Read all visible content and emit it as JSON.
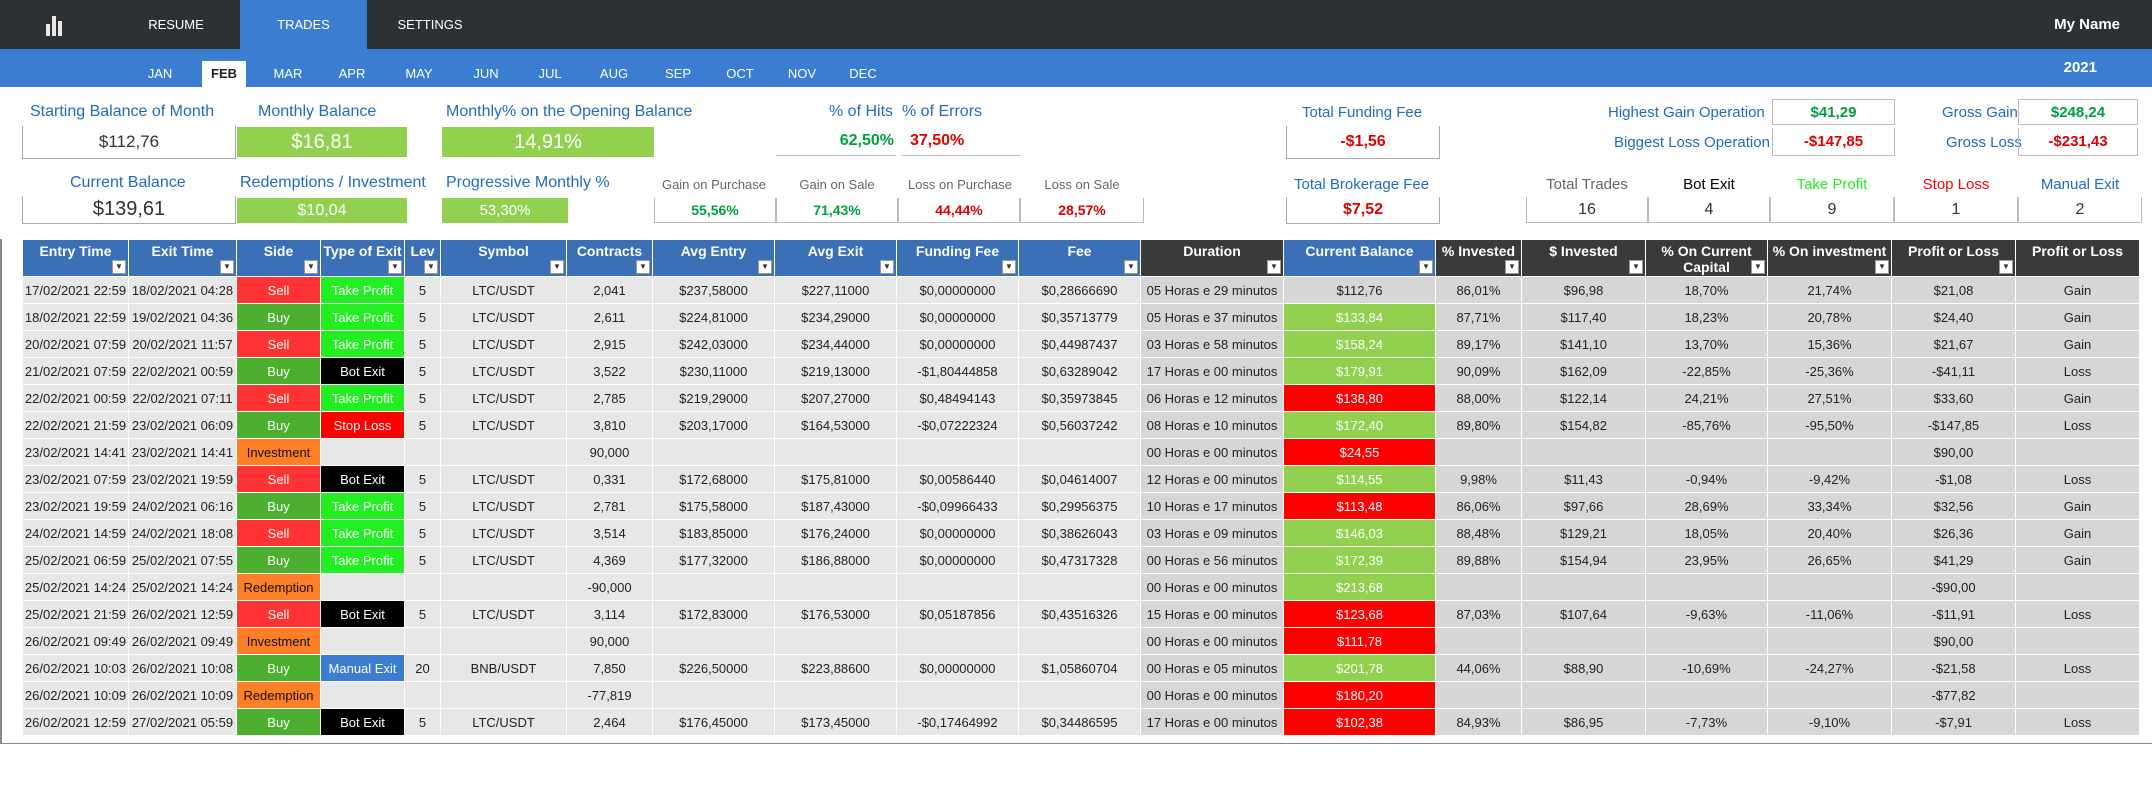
{
  "nav": {
    "tabs": [
      "RESUME",
      "TRADES",
      "SETTINGS"
    ],
    "user": "My Name"
  },
  "months": [
    "JAN",
    "FEB",
    "MAR",
    "APR",
    "MAY",
    "JUN",
    "JUL",
    "AUG",
    "SEP",
    "OCT",
    "NOV",
    "DEC"
  ],
  "year": "2021",
  "summary": {
    "starting_balance_label": "Starting Balance of Month",
    "starting_balance": "$112,76",
    "monthly_balance_label": "Monthly Balance",
    "monthly_balance": "$16,81",
    "monthly_pct_label": "Monthly% on the Opening Balance",
    "monthly_pct": "14,91%",
    "hits_label": "% of Hits",
    "hits": "62,50%",
    "errors_label": "% of Errors",
    "errors": "37,50%",
    "funding_fee_label": "Total Funding Fee",
    "funding_fee": "-$1,56",
    "highest_gain_label": "Highest Gain Operation",
    "highest_gain": "$41,29",
    "biggest_loss_label": "Biggest Loss Operation",
    "biggest_loss": "-$147,85",
    "gross_gain_label": "Gross Gain",
    "gross_gain": "$248,24",
    "gross_loss_label": "Gross Loss",
    "gross_loss": "-$231,43",
    "current_balance_label": "Current Balance",
    "current_balance": "$139,61",
    "redemptions_label": "Redemptions / Investment",
    "redemptions": "$10,04",
    "progressive_label": "Progressive Monthly %",
    "progressive": "53,30%",
    "gain_purchase_label": "Gain on Purchase",
    "gain_purchase": "55,56%",
    "gain_sale_label": "Gain on Sale",
    "gain_sale": "71,43%",
    "loss_purchase_label": "Loss on Purchase",
    "loss_purchase": "44,44%",
    "loss_sale_label": "Loss on Sale",
    "loss_sale": "28,57%",
    "brokerage_label": "Total Brokerage Fee",
    "brokerage": "$7,52",
    "total_trades_label": "Total Trades",
    "total_trades": "16",
    "bot_exit_label": "Bot Exit",
    "bot_exit": "4",
    "take_profit_label": "Take Profit",
    "take_profit": "9",
    "stop_loss_label": "Stop Loss",
    "stop_loss": "1",
    "manual_exit_label": "Manual Exit",
    "manual_exit": "2"
  },
  "table": {
    "headers": [
      "Entry Time",
      "Exit Time",
      "Side",
      "Type of Exit",
      "Lev",
      "Symbol",
      "Contracts",
      "Avg Entry",
      "Avg Exit",
      "Funding Fee",
      "Fee",
      "Duration",
      "Current Balance",
      "% Invested",
      "$ Invested",
      "% On Current Capital",
      "% On investment",
      "Profit or Loss",
      "Profit or Loss"
    ],
    "rows": [
      [
        "17/02/2021 22:59",
        "18/02/2021 04:28",
        "Sell",
        "Take Profit",
        "5",
        "LTC/USDT",
        "2,041",
        "$237,58000",
        "$227,11000",
        "$0,00000000",
        "$0,28666690",
        "05 Horas e 29 minutos",
        "$112,76",
        "86,01%",
        "$96,98",
        "18,70%",
        "21,74%",
        "$21,08",
        "Gain"
      ],
      [
        "18/02/2021 22:59",
        "19/02/2021 04:36",
        "Buy",
        "Take Profit",
        "5",
        "LTC/USDT",
        "2,611",
        "$224,81000",
        "$234,29000",
        "$0,00000000",
        "$0,35713779",
        "05 Horas e 37 minutos",
        "$133,84",
        "87,71%",
        "$117,40",
        "18,23%",
        "20,78%",
        "$24,40",
        "Gain"
      ],
      [
        "20/02/2021 07:59",
        "20/02/2021 11:57",
        "Sell",
        "Take Profit",
        "5",
        "LTC/USDT",
        "2,915",
        "$242,03000",
        "$234,44000",
        "$0,00000000",
        "$0,44987437",
        "03 Horas e 58 minutos",
        "$158,24",
        "89,17%",
        "$141,10",
        "13,70%",
        "15,36%",
        "$21,67",
        "Gain"
      ],
      [
        "21/02/2021 07:59",
        "22/02/2021 00:59",
        "Buy",
        "Bot Exit",
        "5",
        "LTC/USDT",
        "3,522",
        "$230,11000",
        "$219,13000",
        "-$1,80444858",
        "$0,63289042",
        "17 Horas e 00 minutos",
        "$179,91",
        "90,09%",
        "$162,09",
        "-22,85%",
        "-25,36%",
        "-$41,11",
        "Loss"
      ],
      [
        "22/02/2021 00:59",
        "22/02/2021 07:11",
        "Sell",
        "Take Profit",
        "5",
        "LTC/USDT",
        "2,785",
        "$219,29000",
        "$207,27000",
        "$0,48494143",
        "$0,35973845",
        "06 Horas e 12 minutos",
        "$138,80",
        "88,00%",
        "$122,14",
        "24,21%",
        "27,51%",
        "$33,60",
        "Gain"
      ],
      [
        "22/02/2021 21:59",
        "23/02/2021 06:09",
        "Buy",
        "Stop Loss",
        "5",
        "LTC/USDT",
        "3,810",
        "$203,17000",
        "$164,53000",
        "-$0,07222324",
        "$0,56037242",
        "08 Horas e 10 minutos",
        "$172,40",
        "89,80%",
        "$154,82",
        "-85,76%",
        "-95,50%",
        "-$147,85",
        "Loss"
      ],
      [
        "23/02/2021 14:41",
        "23/02/2021 14:41",
        "Investment",
        "",
        "",
        "",
        "90,000",
        "",
        "",
        "",
        "",
        "00 Horas e 00 minutos",
        "$24,55",
        "",
        "",
        "",
        "",
        "$90,00",
        ""
      ],
      [
        "23/02/2021 07:59",
        "23/02/2021 19:59",
        "Sell",
        "Bot Exit",
        "5",
        "LTC/USDT",
        "0,331",
        "$172,68000",
        "$175,81000",
        "$0,00586440",
        "$0,04614007",
        "12 Horas e 00 minutos",
        "$114,55",
        "9,98%",
        "$11,43",
        "-0,94%",
        "-9,42%",
        "-$1,08",
        "Loss"
      ],
      [
        "23/02/2021 19:59",
        "24/02/2021 06:16",
        "Buy",
        "Take Profit",
        "5",
        "LTC/USDT",
        "2,781",
        "$175,58000",
        "$187,43000",
        "-$0,09966433",
        "$0,29956375",
        "10 Horas e 17 minutos",
        "$113,48",
        "86,06%",
        "$97,66",
        "28,69%",
        "33,34%",
        "$32,56",
        "Gain"
      ],
      [
        "24/02/2021 14:59",
        "24/02/2021 18:08",
        "Sell",
        "Take Profit",
        "5",
        "LTC/USDT",
        "3,514",
        "$183,85000",
        "$176,24000",
        "$0,00000000",
        "$0,38626043",
        "03 Horas e 09 minutos",
        "$146,03",
        "88,48%",
        "$129,21",
        "18,05%",
        "20,40%",
        "$26,36",
        "Gain"
      ],
      [
        "25/02/2021 06:59",
        "25/02/2021 07:55",
        "Buy",
        "Take Profit",
        "5",
        "LTC/USDT",
        "4,369",
        "$177,32000",
        "$186,88000",
        "$0,00000000",
        "$0,47317328",
        "00 Horas e 56 minutos",
        "$172,39",
        "89,88%",
        "$154,94",
        "23,95%",
        "26,65%",
        "$41,29",
        "Gain"
      ],
      [
        "25/02/2021 14:24",
        "25/02/2021 14:24",
        "Redemption",
        "",
        "",
        "",
        "-90,000",
        "",
        "",
        "",
        "",
        "00 Horas e 00 minutos",
        "$213,68",
        "",
        "",
        "",
        "",
        "-$90,00",
        ""
      ],
      [
        "25/02/2021 21:59",
        "26/02/2021 12:59",
        "Sell",
        "Bot Exit",
        "5",
        "LTC/USDT",
        "3,114",
        "$172,83000",
        "$176,53000",
        "$0,05187856",
        "$0,43516326",
        "15 Horas e 00 minutos",
        "$123,68",
        "87,03%",
        "$107,64",
        "-9,63%",
        "-11,06%",
        "-$11,91",
        "Loss"
      ],
      [
        "26/02/2021 09:49",
        "26/02/2021 09:49",
        "Investment",
        "",
        "",
        "",
        "90,000",
        "",
        "",
        "",
        "",
        "00 Horas e 00 minutos",
        "$111,78",
        "",
        "",
        "",
        "",
        "$90,00",
        ""
      ],
      [
        "26/02/2021 10:03",
        "26/02/2021 10:08",
        "Buy",
        "Manual Exit",
        "20",
        "BNB/USDT",
        "7,850",
        "$226,50000",
        "$223,88600",
        "$0,00000000",
        "$1,05860704",
        "00 Horas e 05 minutos",
        "$201,78",
        "44,06%",
        "$88,90",
        "-10,69%",
        "-24,27%",
        "-$21,58",
        "Loss"
      ],
      [
        "26/02/2021 10:09",
        "26/02/2021 10:09",
        "Redemption",
        "",
        "",
        "",
        "-77,819",
        "",
        "",
        "",
        "",
        "00 Horas e 00 minutos",
        "$180,20",
        "",
        "",
        "",
        "",
        "-$77,82",
        ""
      ],
      [
        "26/02/2021 12:59",
        "27/02/2021 05:59",
        "Buy",
        "Bot Exit",
        "5",
        "LTC/USDT",
        "2,464",
        "$176,45000",
        "$173,45000",
        "-$0,17464992",
        "$0,34486595",
        "17 Horas e 00 minutos",
        "$102,38",
        "84,93%",
        "$86,95",
        "-7,73%",
        "-9,10%",
        "-$7,91",
        "Loss"
      ]
    ]
  },
  "colors": {
    "header_bg": "#2d3134",
    "accent": "#3a7dd1",
    "gain": "#00a040",
    "loss": "#e00000",
    "balance_up": "#92d050",
    "balance_down": "#ff0000"
  },
  "icons": {
    "logo": "bar-chart-icon",
    "filter": "filter-dropdown-icon"
  }
}
